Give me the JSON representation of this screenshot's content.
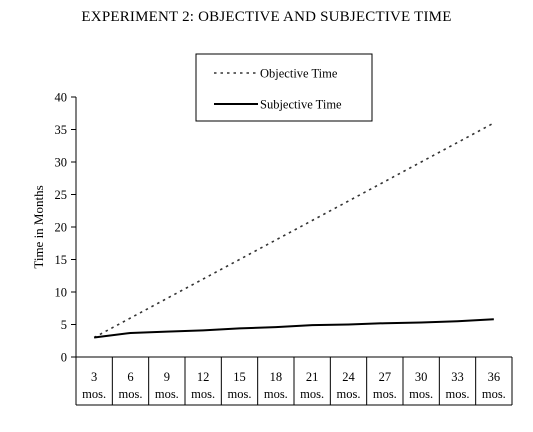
{
  "chart_data": {
    "type": "line",
    "title": "EXPERIMENT 2: OBJECTIVE AND SUBJECTIVE TIME",
    "xlabel": "",
    "ylabel": "Time in Months",
    "ylim": [
      0,
      40
    ],
    "yticks": [
      0,
      5,
      10,
      15,
      20,
      25,
      30,
      35,
      40
    ],
    "categories": [
      "3",
      "6",
      "9",
      "12",
      "15",
      "18",
      "21",
      "24",
      "27",
      "30",
      "33",
      "36"
    ],
    "category_suffix": "mos.",
    "grid": false,
    "legend_position": "top-center",
    "series": [
      {
        "name": "Objective Time",
        "style": "dashed",
        "color": "#333333",
        "values": [
          3,
          6,
          9,
          12,
          15,
          18,
          21,
          24,
          27,
          30,
          33,
          36
        ]
      },
      {
        "name": "Subjective Time",
        "style": "solid",
        "color": "#000000",
        "values": [
          3,
          3.7,
          3.9,
          4.1,
          4.4,
          4.6,
          4.9,
          5.0,
          5.2,
          5.3,
          5.5,
          5.8
        ]
      }
    ]
  }
}
